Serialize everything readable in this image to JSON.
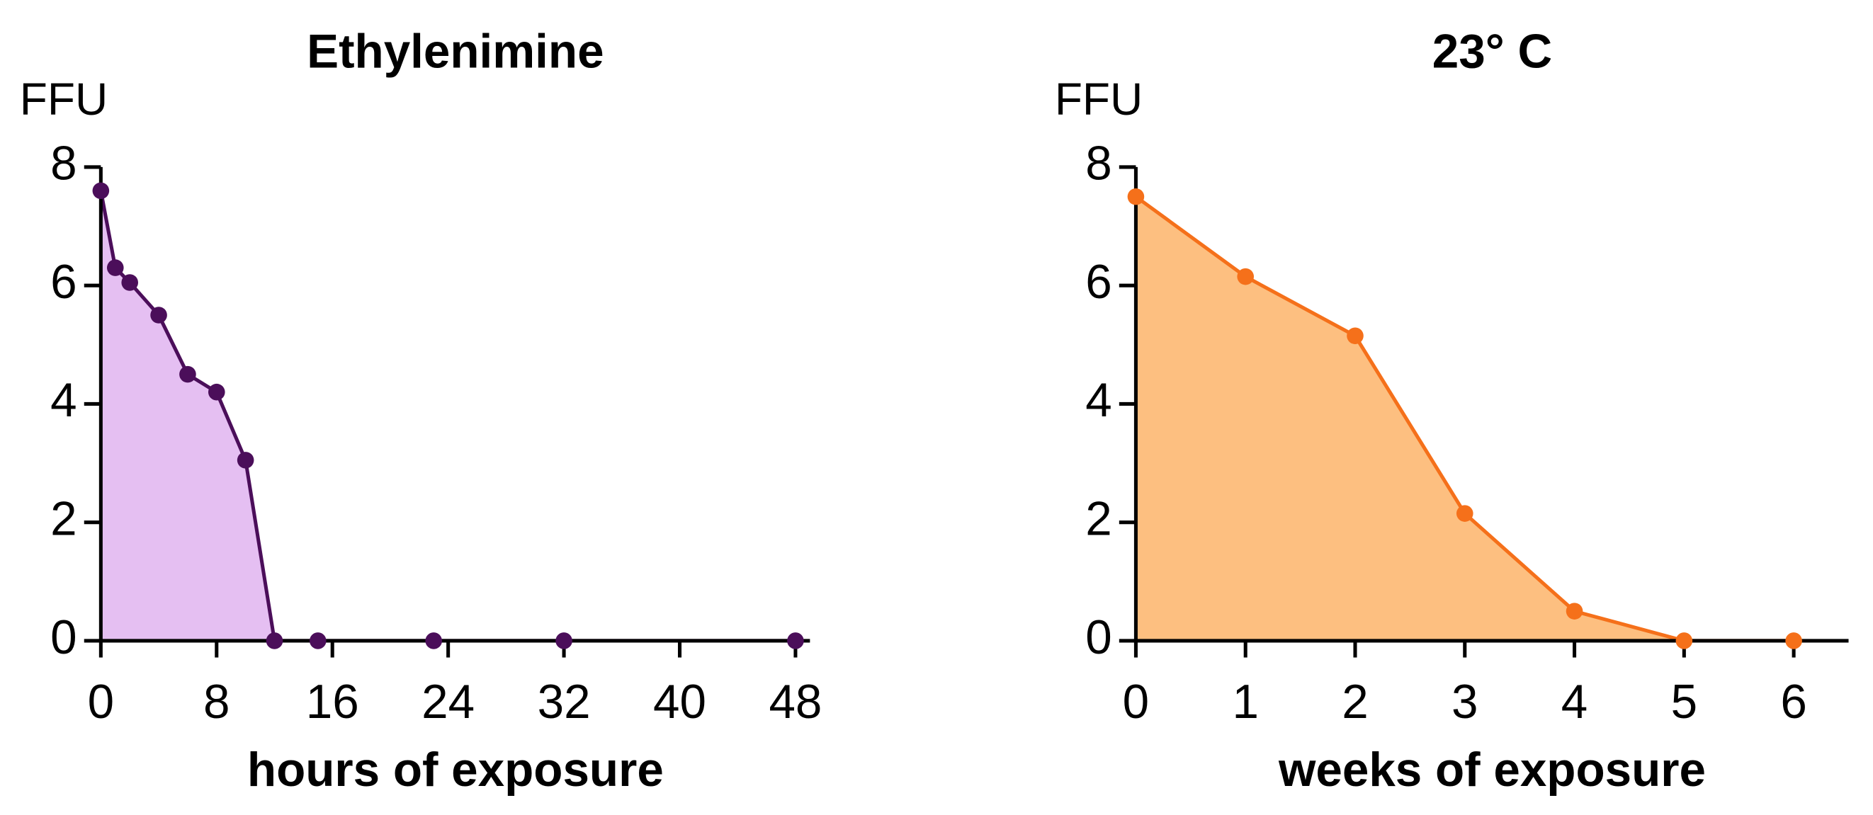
{
  "chart_data": [
    {
      "type": "area",
      "title": "Ethylenimine",
      "y_label": "FFU",
      "x_label": "hours of exposure",
      "x": [
        0,
        1,
        2,
        4,
        6,
        8,
        10,
        12,
        15,
        23,
        32,
        48
      ],
      "values": [
        7.6,
        6.3,
        6.05,
        5.5,
        4.5,
        4.2,
        3.05,
        0,
        0,
        0,
        0,
        0
      ],
      "color": "#4b0e5a",
      "fill_color": "#e5bff2",
      "xlim": [
        0,
        49
      ],
      "xticks": [
        0,
        8,
        16,
        24,
        32,
        40,
        48
      ],
      "ylim": [
        0,
        8
      ],
      "yticks": [
        0,
        2,
        4,
        6,
        8
      ]
    },
    {
      "type": "area",
      "title": "23° C",
      "y_label": "FFU",
      "x_label": "weeks of exposure",
      "x": [
        0,
        1,
        2,
        3,
        4,
        5,
        6
      ],
      "values": [
        7.5,
        6.15,
        5.15,
        2.15,
        0.5,
        0,
        0
      ],
      "color": "#f5701a",
      "fill_color": "#fdbf80",
      "xlim": [
        0,
        6.5
      ],
      "xticks": [
        0,
        1,
        2,
        3,
        4,
        5,
        6
      ],
      "ylim": [
        0,
        8
      ],
      "yticks": [
        0,
        2,
        4,
        6,
        8
      ]
    }
  ]
}
